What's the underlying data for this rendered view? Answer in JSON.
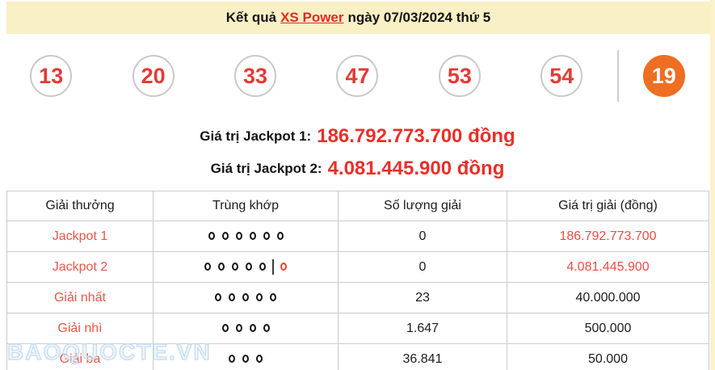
{
  "title": {
    "prefix": "Kết quả",
    "link": "XS Power",
    "suffix": "ngày 07/03/2024 thứ 5"
  },
  "balls": {
    "main": [
      "13",
      "20",
      "33",
      "47",
      "53",
      "54"
    ],
    "special": "19"
  },
  "jackpot_lines": [
    {
      "label": "Giá trị Jackpot 1:",
      "value": "186.792.773.700 đồng"
    },
    {
      "label": "Giá trị Jackpot 2:",
      "value": "4.081.445.900 đồng"
    }
  ],
  "table": {
    "headers": [
      "Giải thưởng",
      "Trùng khớp",
      "Số lượng giải",
      "Giá trị giải (đồng)"
    ],
    "rows": [
      {
        "prize": "Jackpot 1",
        "match_black": 6,
        "match_special": false,
        "count": "0",
        "value": "186.792.773.700",
        "value_red": true
      },
      {
        "prize": "Jackpot 2",
        "match_black": 5,
        "match_special": true,
        "count": "0",
        "value": "4.081.445.900",
        "value_red": true
      },
      {
        "prize": "Giải nhất",
        "match_black": 5,
        "match_special": false,
        "count": "23",
        "value": "40.000.000",
        "value_red": false
      },
      {
        "prize": "Giải nhì",
        "match_black": 4,
        "match_special": false,
        "count": "1.647",
        "value": "500.000",
        "value_red": false
      },
      {
        "prize": "Giải ba",
        "match_black": 3,
        "match_special": false,
        "count": "36.841",
        "value": "50.000",
        "value_red": false
      }
    ]
  },
  "watermark": "BAOQUOCTE.VN",
  "colors": {
    "header_bg": "#faf0c5",
    "edge_strip": "#fbf2cb",
    "link_red": "#dd2c23",
    "red_text": "#e8302a",
    "prize_red": "#ea5749",
    "value_red": "#ee4c44",
    "ball_number": "#e43a36",
    "special_ball_bg": "#ee6e23",
    "special_circle": "#e8442e",
    "border": "#cccccc",
    "watermark_blue": "#c6ddf1"
  }
}
